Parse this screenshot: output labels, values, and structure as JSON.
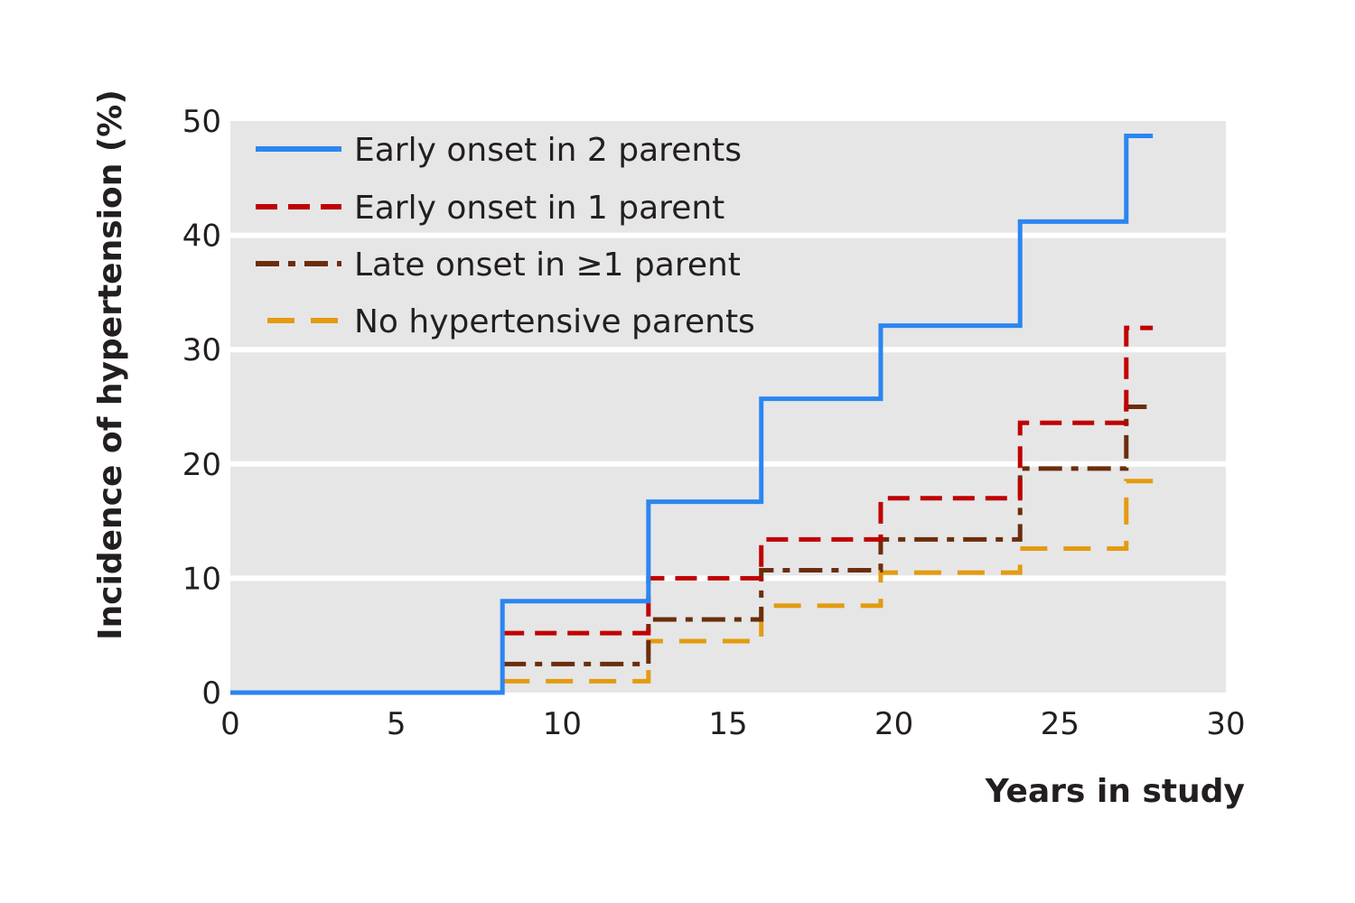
{
  "chart_data": {
    "type": "line",
    "step": true,
    "title": "",
    "xlabel": "Years in study",
    "ylabel": "Incidence of hypertension (%)",
    "xlim": [
      0,
      30
    ],
    "ylim": [
      0,
      50
    ],
    "xticks": [
      "0",
      "5",
      "10",
      "15",
      "20",
      "25",
      "30"
    ],
    "yticks": [
      "0",
      "10",
      "20",
      "30",
      "40",
      "50"
    ],
    "grid": "horizontal",
    "background": "#e6e6e7",
    "legend_position": "top-left",
    "series": [
      {
        "name": "Early onset in 2 parents",
        "color": "#2b86f0",
        "dash": "solid",
        "x": [
          0,
          8.2,
          12.6,
          16.0,
          19.6,
          23.8,
          27.0,
          27.8
        ],
        "y": [
          0,
          8.0,
          16.7,
          25.7,
          32.1,
          41.2,
          48.7,
          48.7
        ]
      },
      {
        "name": "Early onset in 1 parent",
        "color": "#c00000",
        "dash": "dashed",
        "x": [
          8.2,
          12.6,
          16.0,
          19.6,
          23.8,
          27.0,
          27.8
        ],
        "y": [
          5.2,
          10.0,
          13.4,
          17.0,
          23.6,
          31.9,
          31.9
        ]
      },
      {
        "name": "Late onset in ≥1 parent",
        "color": "#6b2d0c",
        "dash": "dashdot",
        "x": [
          8.2,
          12.6,
          16.0,
          19.6,
          23.8,
          27.0,
          27.8
        ],
        "y": [
          2.5,
          6.4,
          10.7,
          13.4,
          19.6,
          25.0,
          25.0
        ]
      },
      {
        "name": "No hypertensive parents",
        "color": "#e39b10",
        "dash": "longdash",
        "x": [
          8.2,
          12.6,
          16.0,
          19.6,
          23.8,
          27.0,
          27.8
        ],
        "y": [
          1.0,
          4.5,
          7.6,
          10.5,
          12.6,
          18.5,
          18.5
        ]
      }
    ]
  }
}
